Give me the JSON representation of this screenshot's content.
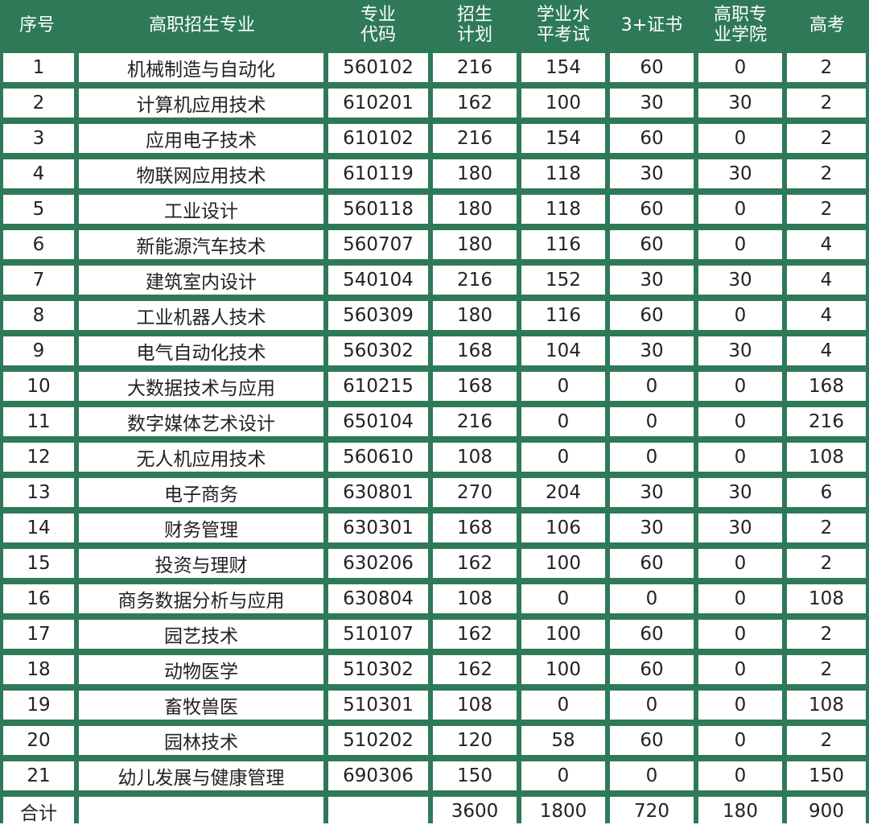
{
  "table": {
    "columns": [
      "序号",
      "高职招生专业",
      "专业\n代码",
      "招生\n计划",
      "学业水\n平考试",
      "3+证书",
      "高职专\n业学院",
      "高考"
    ],
    "rows": [
      [
        "1",
        "机械制造与自动化",
        "560102",
        "216",
        "154",
        "60",
        "0",
        "2"
      ],
      [
        "2",
        "计算机应用技术",
        "610201",
        "162",
        "100",
        "30",
        "30",
        "2"
      ],
      [
        "3",
        "应用电子技术",
        "610102",
        "216",
        "154",
        "60",
        "0",
        "2"
      ],
      [
        "4",
        "物联网应用技术",
        "610119",
        "180",
        "118",
        "30",
        "30",
        "2"
      ],
      [
        "5",
        "工业设计",
        "560118",
        "180",
        "118",
        "60",
        "0",
        "2"
      ],
      [
        "6",
        "新能源汽车技术",
        "560707",
        "180",
        "116",
        "60",
        "0",
        "4"
      ],
      [
        "7",
        "建筑室内设计",
        "540104",
        "216",
        "152",
        "30",
        "30",
        "4"
      ],
      [
        "8",
        "工业机器人技术",
        "560309",
        "180",
        "116",
        "60",
        "0",
        "4"
      ],
      [
        "9",
        "电气自动化技术",
        "560302",
        "168",
        "104",
        "30",
        "30",
        "4"
      ],
      [
        "10",
        "大数据技术与应用",
        "610215",
        "168",
        "0",
        "0",
        "0",
        "168"
      ],
      [
        "11",
        "数字媒体艺术设计",
        "650104",
        "216",
        "0",
        "0",
        "0",
        "216"
      ],
      [
        "12",
        "无人机应用技术",
        "560610",
        "108",
        "0",
        "0",
        "0",
        "108"
      ],
      [
        "13",
        "电子商务",
        "630801",
        "270",
        "204",
        "30",
        "30",
        "6"
      ],
      [
        "14",
        "财务管理",
        "630301",
        "168",
        "106",
        "30",
        "30",
        "2"
      ],
      [
        "15",
        "投资与理财",
        "630206",
        "162",
        "100",
        "60",
        "0",
        "2"
      ],
      [
        "16",
        "商务数据分析与应用",
        "630804",
        "108",
        "0",
        "0",
        "0",
        "108"
      ],
      [
        "17",
        "园艺技术",
        "510107",
        "162",
        "100",
        "60",
        "0",
        "2"
      ],
      [
        "18",
        "动物医学",
        "510302",
        "162",
        "100",
        "60",
        "0",
        "2"
      ],
      [
        "19",
        "畜牧兽医",
        "510301",
        "108",
        "0",
        "0",
        "0",
        "108"
      ],
      [
        "20",
        "园林技术",
        "510202",
        "120",
        "58",
        "60",
        "0",
        "2"
      ],
      [
        "21",
        "幼儿发展与健康管理",
        "690306",
        "150",
        "0",
        "0",
        "0",
        "150"
      ],
      [
        "合计",
        "",
        "",
        "3600",
        "1800",
        "720",
        "180",
        "900"
      ]
    ]
  },
  "colors": {
    "header_bg": "#2e7a58",
    "header_text": "#ffffff",
    "cell_bg": "#ffffff",
    "cell_text": "#222222"
  }
}
